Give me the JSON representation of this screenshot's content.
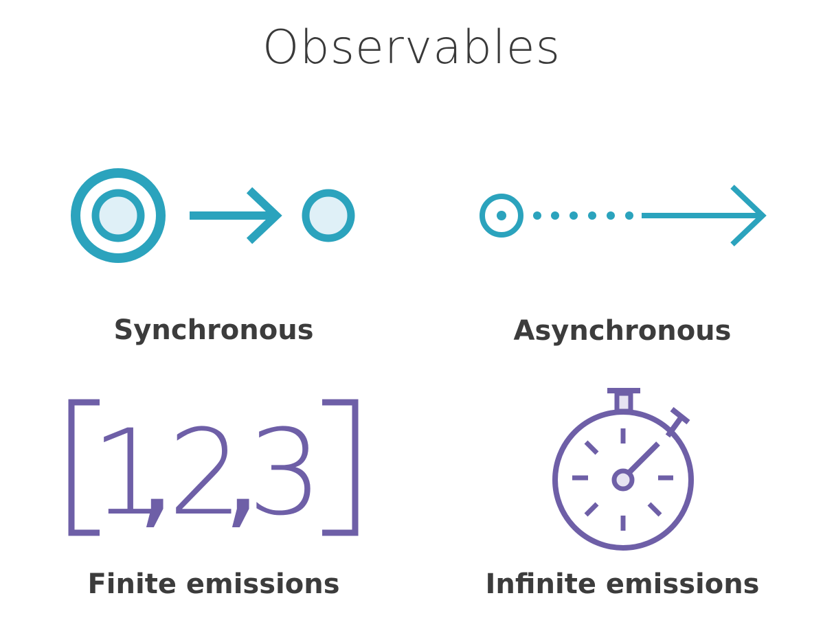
{
  "title": "Observables",
  "colors": {
    "teal": "#2ba3bd",
    "teal_fill": "#dff0f7",
    "purple": "#6e5fa7",
    "purple_fill": "#e6e3f2",
    "text": "#3c3c3c"
  },
  "quadrants": [
    {
      "label": "Synchronous",
      "icon": "sync-icon"
    },
    {
      "label": "Asynchronous",
      "icon": "async-icon"
    },
    {
      "label": "Finite emissions",
      "icon": "finite-array-icon"
    },
    {
      "label": "Infinite emissions",
      "icon": "stopwatch-icon"
    }
  ],
  "finite_array": {
    "digits": [
      "1",
      "2",
      "3"
    ]
  }
}
